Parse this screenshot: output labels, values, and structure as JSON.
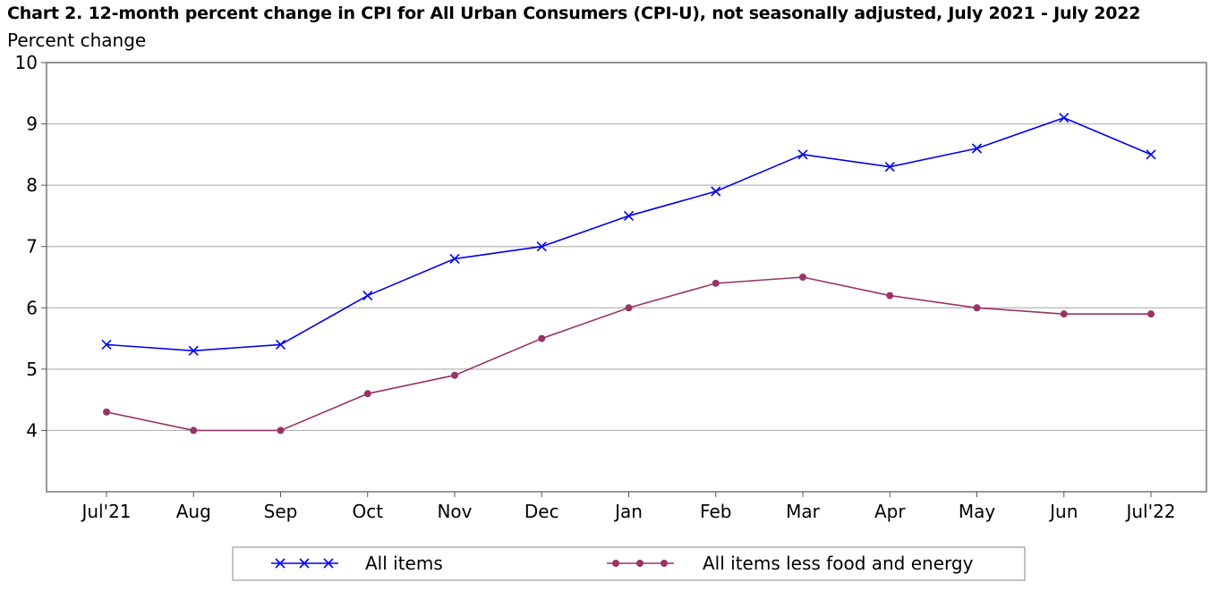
{
  "chart_data": {
    "type": "line",
    "title": "Chart 2. 12-month percent change in CPI for All Urban Consumers (CPI-U), not seasonally adjusted, July 2021 - July 2022",
    "ylabel": "Percent change",
    "xlabel": "",
    "categories": [
      "Jul'21",
      "Aug",
      "Sep",
      "Oct",
      "Nov",
      "Dec",
      "Jan",
      "Feb",
      "Mar",
      "Apr",
      "May",
      "Jun",
      "Jul'22"
    ],
    "ylim": [
      3,
      10
    ],
    "yticks": [
      4,
      5,
      6,
      7,
      8,
      9,
      10
    ],
    "grid": true,
    "legend_position": "bottom",
    "series": [
      {
        "name": "All items",
        "color": "#0000ee",
        "marker": "x",
        "values": [
          5.4,
          5.3,
          5.4,
          6.2,
          6.8,
          7.0,
          7.5,
          7.9,
          8.5,
          8.3,
          8.6,
          9.1,
          8.5
        ]
      },
      {
        "name": "All items less food and energy",
        "color": "#993366",
        "marker": "circle",
        "values": [
          4.3,
          4.0,
          4.0,
          4.6,
          4.9,
          5.5,
          6.0,
          6.4,
          6.5,
          6.2,
          6.0,
          5.9,
          5.9
        ]
      }
    ]
  }
}
